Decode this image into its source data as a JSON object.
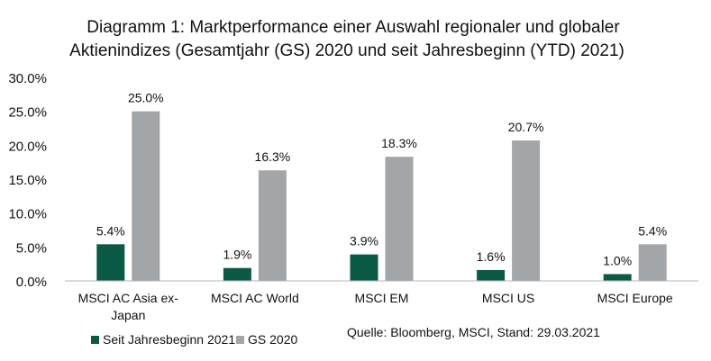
{
  "chart_data": {
    "type": "bar",
    "title": "Diagramm 1: Marktperformance einer Auswahl regionaler und globaler",
    "subtitle": "Aktienindizes (Gesamtjahr (GS) 2020 und seit Jahresbeginn (YTD) 2021)",
    "categories": [
      [
        "MSCI AC Asia ex-",
        "Japan"
      ],
      [
        "MSCI AC World"
      ],
      [
        "MSCI EM"
      ],
      [
        "MSCI US"
      ],
      [
        "MSCI Europe"
      ]
    ],
    "series": [
      {
        "name": "Seit Jahresbeginn 2021",
        "color": "#0b5a45",
        "values": [
          5.4,
          1.9,
          3.9,
          1.6,
          1.0
        ],
        "labels": [
          "5.4%",
          "1.9%",
          "3.9%",
          "1.6%",
          "1.0%"
        ]
      },
      {
        "name": "GS 2020",
        "color": "#a3a6a8",
        "values": [
          25.0,
          16.3,
          18.3,
          20.7,
          5.4
        ],
        "labels": [
          "25.0%",
          "16.3%",
          "18.3%",
          "20.7%",
          "5.4%"
        ]
      }
    ],
    "ylim": [
      0,
      30
    ],
    "yticks": [
      "0.0%",
      "5.0%",
      "10.0%",
      "15.0%",
      "20.0%",
      "25.0%",
      "30.0%"
    ],
    "grid": false,
    "legend_position": "bottom-left",
    "source_note": "Quelle: Bloomberg, MSCI, Stand: 29.03.2021"
  }
}
